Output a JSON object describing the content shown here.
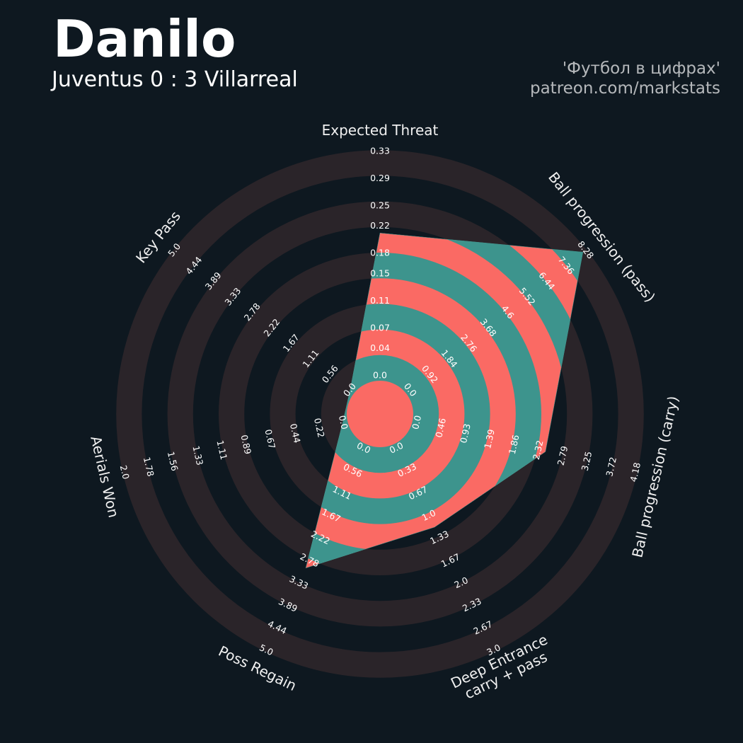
{
  "chart_data": {
    "type": "radar",
    "title": "Danilo",
    "subtitle": "Juventus 0 : 3 Villarreal",
    "annotations": [
      "'Футбол в цифрах'",
      "patreon.com/markstats"
    ],
    "categories": [
      "Expected Threat",
      "Ball progression (pass)",
      "Ball progression (carry)",
      "Deep Entrance\ncarry + pass",
      "Poss Regain",
      "Aerials Won",
      "Key Pass"
    ],
    "values": [
      0.21,
      8.17,
      2.45,
      1.17,
      2.96,
      0,
      0
    ],
    "axes": [
      {
        "ylim": [
          0,
          0.33
        ],
        "yticks": [
          {
            "value": 0,
            "label": "0.0"
          },
          0.04,
          0.07,
          0.11,
          0.15,
          0.18,
          0.22,
          0.25,
          0.29,
          0.33
        ]
      },
      {
        "ylim": [
          0,
          8.28
        ],
        "yticks": [
          {
            "value": 0,
            "label": "0.0"
          },
          0.92,
          1.84,
          2.76,
          3.68,
          4.6,
          5.52,
          6.44,
          7.36,
          8.28
        ]
      },
      {
        "ylim": [
          0,
          4.18
        ],
        "yticks": [
          {
            "value": 0,
            "label": "0.0"
          },
          0.46,
          0.93,
          1.39,
          1.86,
          2.32,
          2.79,
          3.25,
          3.72,
          4.18
        ]
      },
      {
        "ylim": [
          0,
          3.0
        ],
        "yticks": [
          {
            "value": 0,
            "label": "0.0"
          },
          0.33,
          0.67,
          {
            "value": 1,
            "label": "1.0"
          },
          1.33,
          1.67,
          {
            "value": 2,
            "label": "2.0"
          },
          2.33,
          2.67,
          {
            "value": 3,
            "label": "3.0"
          }
        ]
      },
      {
        "ylim": [
          0,
          5.0
        ],
        "yticks": [
          {
            "value": 0,
            "label": "0.0"
          },
          0.56,
          1.11,
          1.67,
          2.22,
          2.78,
          3.33,
          3.89,
          4.44,
          {
            "value": 5,
            "label": "5.0"
          }
        ]
      },
      {
        "ylim": [
          0,
          2.0
        ],
        "yticks": [
          {
            "value": 0,
            "label": "0.0"
          },
          0.22,
          0.44,
          0.67,
          0.89,
          1.11,
          1.33,
          1.56,
          1.78,
          {
            "value": 2,
            "label": "2.0"
          }
        ]
      },
      {
        "ylim": [
          0,
          5.0
        ],
        "yticks": [
          {
            "value": 0,
            "label": "0.0"
          },
          0.56,
          1.11,
          1.67,
          2.22,
          2.78,
          3.33,
          3.89,
          4.44,
          {
            "value": 5,
            "label": "5.0"
          }
        ]
      }
    ],
    "colors": [
      "#fa6a64",
      "#3d948d"
    ],
    "ring_color": "#2a2429"
  }
}
